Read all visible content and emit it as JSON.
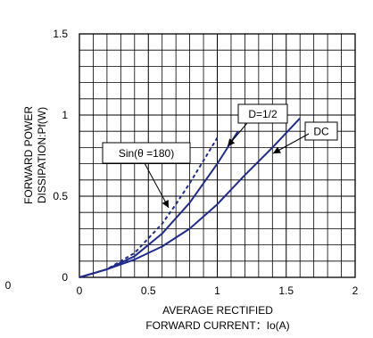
{
  "chart_data": {
    "type": "line",
    "xlabel_line1": "AVERAGE RECTIFIED",
    "xlabel_line2": "FORWARD CURRENT：Io(A)",
    "ylabel_line1": "FORWARD POWER",
    "ylabel_line2": "DISSIPATION:Pf(W)",
    "xlim": [
      0,
      2
    ],
    "ylim": [
      0,
      1.5
    ],
    "x_ticks": [
      "0",
      "0.5",
      "1",
      "1.5",
      "2"
    ],
    "y_ticks": [
      "0",
      "0.5",
      "1",
      "1.5"
    ],
    "stray_tick_label": "0",
    "grid": true,
    "series": [
      {
        "name": "DC",
        "style": "solid",
        "color": "#1f2c8f",
        "x": [
          0,
          0.2,
          0.4,
          0.6,
          0.8,
          1.0,
          1.2,
          1.4,
          1.6
        ],
        "y": [
          0,
          0.05,
          0.11,
          0.19,
          0.3,
          0.45,
          0.63,
          0.8,
          0.98
        ]
      },
      {
        "name": "D=1/2",
        "style": "solid",
        "color": "#1f2c8f",
        "x": [
          0,
          0.2,
          0.4,
          0.6,
          0.8,
          1.0,
          1.15
        ],
        "y": [
          0,
          0.05,
          0.13,
          0.27,
          0.46,
          0.7,
          0.9
        ]
      },
      {
        "name": "Sin(θ =180)",
        "style": "dashed",
        "color": "#1f2c8f",
        "x": [
          0,
          0.2,
          0.4,
          0.6,
          0.7,
          0.8,
          0.9,
          1.0
        ],
        "y": [
          0,
          0.05,
          0.15,
          0.33,
          0.45,
          0.58,
          0.72,
          0.86
        ]
      }
    ]
  }
}
